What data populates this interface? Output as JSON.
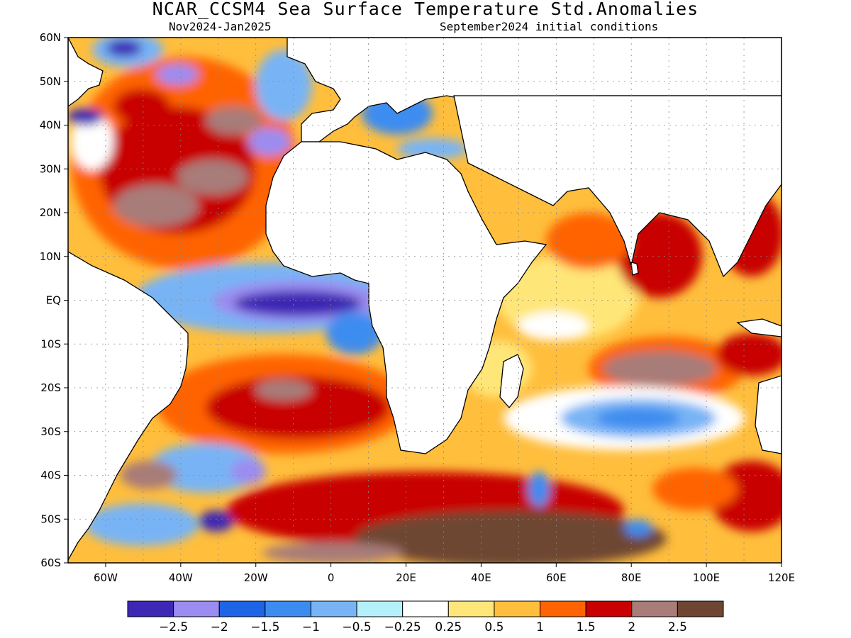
{
  "title": "NCAR_CCSM4 Sea Surface Temperature Std.Anomalies",
  "subtitle_left": "Nov2024-Jan2025",
  "subtitle_right": "September2024 initial conditions",
  "map": {
    "lon_range": [
      -70,
      120
    ],
    "lat_range": [
      -60,
      60
    ],
    "lat_labels": [
      "60N",
      "50N",
      "40N",
      "30N",
      "20N",
      "10N",
      "EQ",
      "10S",
      "20S",
      "30S",
      "40S",
      "50S",
      "60S"
    ],
    "lon_labels": [
      "60W",
      "40W",
      "20W",
      "0",
      "20E",
      "40E",
      "60E",
      "80E",
      "100E",
      "120E"
    ],
    "land_color": "#ffffff",
    "grid": "dotted"
  },
  "colorbar": {
    "colors": [
      "#3c28b4",
      "#9b8cf0",
      "#1e64e6",
      "#3c8cf0",
      "#78b4f5",
      "#b4f0fa",
      "#ffffff",
      "#ffe678",
      "#ffbe3c",
      "#ff6400",
      "#c80000",
      "#a87c78",
      "#6e4632"
    ],
    "labels": [
      "-2.5",
      "-2",
      "-1.5",
      "-1",
      "-0.5",
      "-0.25",
      "0.25",
      "0.5",
      "1",
      "1.5",
      "2",
      "2.5"
    ]
  }
}
